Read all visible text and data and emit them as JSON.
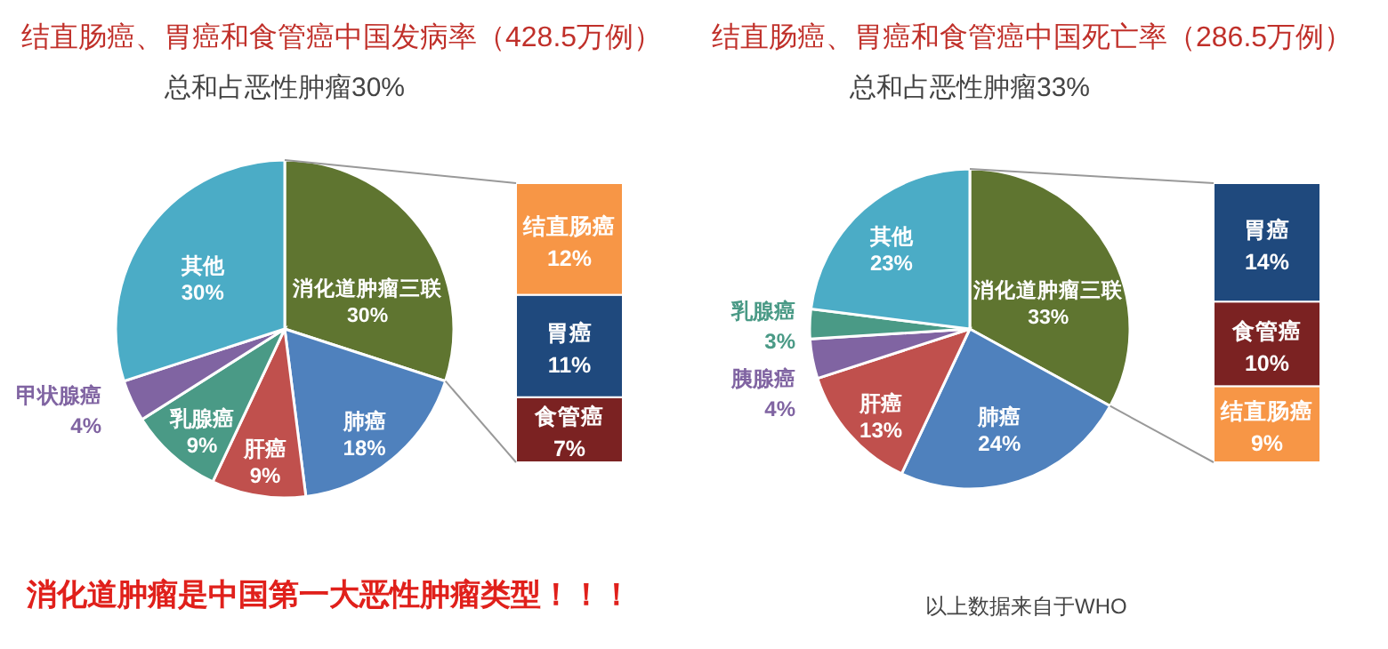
{
  "chart_data": [
    {
      "type": "pie",
      "title": "结直肠癌、胃癌和食管癌中国发病率（428.5万例）",
      "subtitle": "总和占恶性肿瘤30%",
      "categories": [
        "消化道肿瘤三联",
        "肺癌",
        "肝癌",
        "乳腺癌",
        "甲状腺癌",
        "其他"
      ],
      "values": [
        30,
        18,
        9,
        9,
        4,
        30
      ],
      "value_labels": [
        "30%",
        "18%",
        "9%",
        "9%",
        "4%",
        "30%"
      ],
      "colors": [
        "#5f7530",
        "#4f81bd",
        "#c0504d",
        "#4a9a86",
        "#8064a2",
        "#4bacc6"
      ],
      "annotations": [
        "消化道肿瘤是中国第一大恶性肿瘤类型！！！",
        "以上数据来自于WHO"
      ]
    },
    {
      "type": "bar",
      "stacked": true,
      "categories": [
        null
      ],
      "series": [
        {
          "name": "食管癌",
          "color": "#7b2222",
          "values": [
            7
          ],
          "value_labels": [
            "7%"
          ]
        },
        {
          "name": "胃癌",
          "color": "#1f497d",
          "values": [
            11
          ],
          "value_labels": [
            "11%"
          ]
        },
        {
          "name": "结直肠癌",
          "color": "#f79646",
          "values": [
            12
          ],
          "value_labels": [
            "12%"
          ]
        }
      ]
    },
    {
      "type": "pie",
      "title": "结直肠癌、胃癌和食管癌中国死亡率（286.5万例）",
      "subtitle": "总和占恶性肿瘤33%",
      "categories": [
        "消化道肿瘤三联",
        "肺癌",
        "肝癌",
        "胰腺癌",
        "乳腺癌",
        "其他"
      ],
      "values": [
        33,
        24,
        13,
        4,
        3,
        23
      ],
      "value_labels": [
        "33%",
        "24%",
        "13%",
        "4%",
        "3%",
        "23%"
      ],
      "colors": [
        "#5f7530",
        "#4f81bd",
        "#c0504d",
        "#8064a2",
        "#4a9a86",
        "#4bacc6"
      ]
    },
    {
      "type": "bar",
      "stacked": true,
      "categories": [
        null
      ],
      "series": [
        {
          "name": "结直肠癌",
          "color": "#f79646",
          "values": [
            9
          ],
          "value_labels": [
            "9%"
          ]
        },
        {
          "name": "食管癌",
          "color": "#7b2222",
          "values": [
            10
          ],
          "value_labels": [
            "10%"
          ]
        },
        {
          "name": "胃癌",
          "color": "#1f497d",
          "values": [
            14
          ],
          "value_labels": [
            "14%"
          ]
        }
      ]
    }
  ]
}
